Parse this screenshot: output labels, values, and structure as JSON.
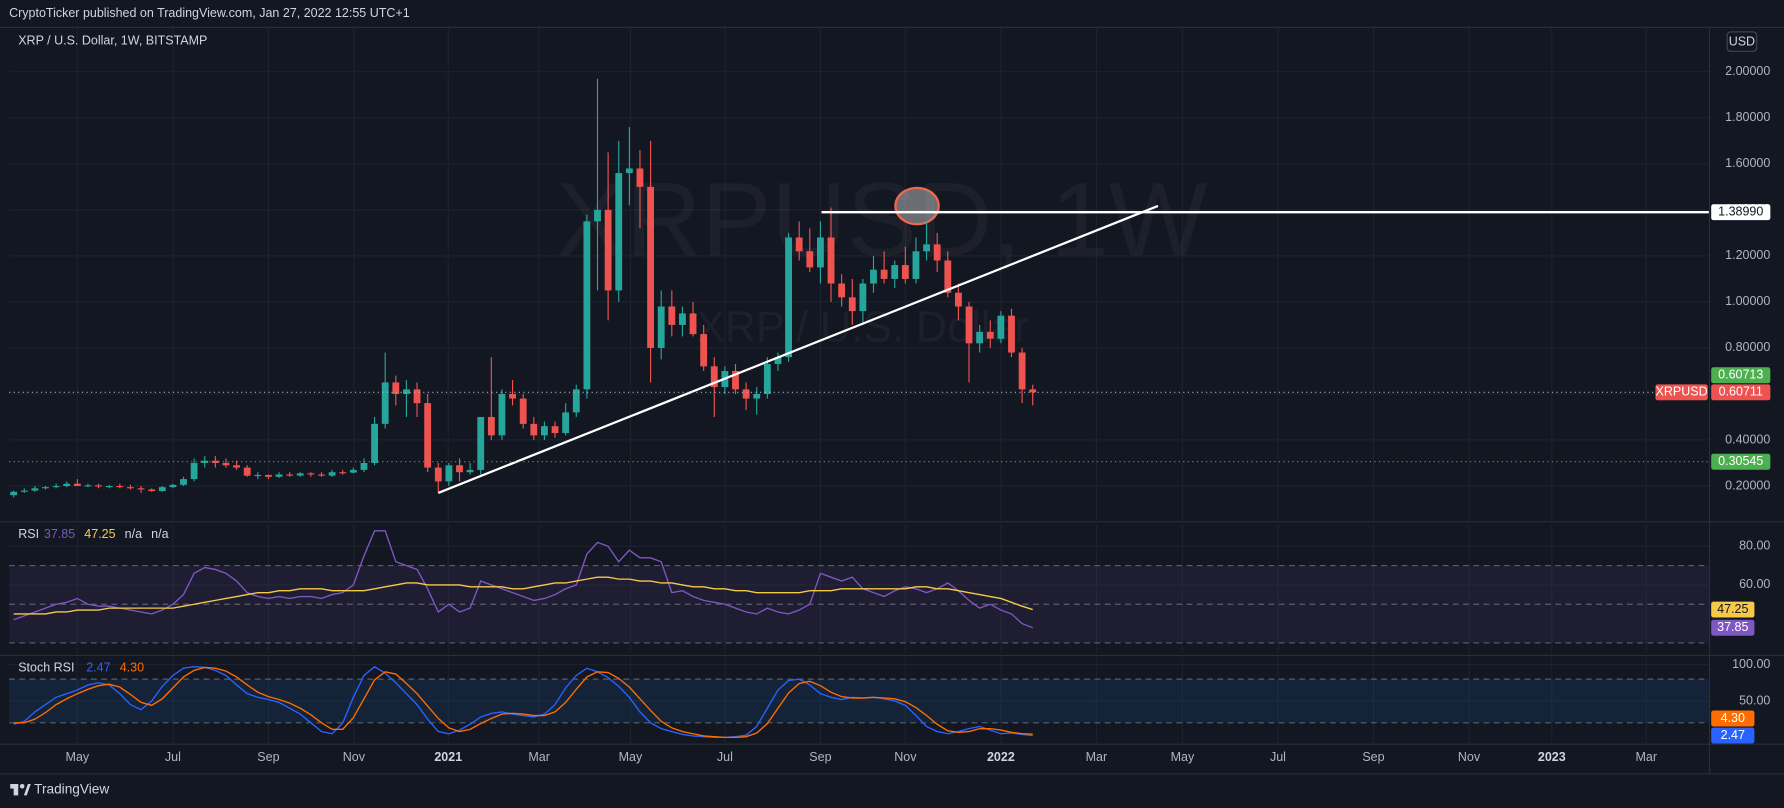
{
  "header": {
    "published": "CryptoTicker published on TradingView.com, Jan 27, 2022 12:55 UTC+1",
    "brand": "TradingView"
  },
  "chart_data": [
    {
      "type": "candlestick",
      "title": "XRP / U.S. Dollar, 1W, BITSTAMP",
      "watermark": "XRPUSD, 1W",
      "watermark_subtitle": "XRP / U.S. Dollar",
      "currency": "USD",
      "up_color": "#26a69a",
      "down_color": "#ef5350",
      "grid": true,
      "xlim": [
        -0.43,
        159.7
      ],
      "xticks": [
        {
          "value": 6.0,
          "label": "May"
        },
        {
          "value": 15.0,
          "label": "Jul"
        },
        {
          "value": 24.0,
          "label": "Sep"
        },
        {
          "value": 32.05,
          "label": "Nov"
        },
        {
          "value": 40.94,
          "label": "2021"
        },
        {
          "value": 49.5,
          "label": "Mar"
        },
        {
          "value": 58.1,
          "label": "May"
        },
        {
          "value": 67.0,
          "label": "Jul"
        },
        {
          "value": 76.0,
          "label": "Sep"
        },
        {
          "value": 84.0,
          "label": "Nov"
        },
        {
          "value": 93.0,
          "label": "2022"
        },
        {
          "value": 102.0,
          "label": "Mar"
        },
        {
          "value": 110.1,
          "label": "May"
        },
        {
          "value": 119.1,
          "label": "Jul"
        },
        {
          "value": 128.1,
          "label": "Sep"
        },
        {
          "value": 137.1,
          "label": "Nov"
        },
        {
          "value": 144.9,
          "label": "2023"
        },
        {
          "value": 153.8,
          "label": "Mar"
        }
      ],
      "ylim": [
        0.052,
        2.193
      ],
      "yticks": [
        {
          "value": 0.2,
          "label": "0.20000"
        },
        {
          "value": 0.4,
          "label": "0.40000"
        },
        {
          "value": 0.6,
          "label": "0.60000"
        },
        {
          "value": 0.8,
          "label": "0.80000"
        },
        {
          "value": 1.0,
          "label": "1.00000"
        },
        {
          "value": 1.2,
          "label": "1.20000"
        },
        {
          "value": 1.4,
          "label": "1.40000"
        },
        {
          "value": 1.6,
          "label": "1.60000"
        },
        {
          "value": 1.8,
          "label": "1.80000"
        },
        {
          "value": 2.0,
          "label": "2.00000"
        }
      ],
      "price_labels": [
        {
          "value": 1.3899,
          "label": "1.38990",
          "color": "#ffffff",
          "text_color": "#131722",
          "line_from": 76.1
        },
        {
          "value": 0.60711,
          "label": "0.60711",
          "color": "#ef5350",
          "text_color": "#ffffff",
          "tag": "XRPUSD",
          "dotted_line": "#b2b5be"
        },
        {
          "value": 0.60713,
          "label": "0.60713",
          "color": "#4caf50",
          "text_color": "#ffffff"
        },
        {
          "value": 0.30545,
          "label": "0.30545",
          "color": "#4caf50",
          "text_color": "#ffffff",
          "dotted_line": "#4caf50"
        }
      ],
      "trendline": [
        [
          40.0,
          0.17
        ],
        [
          107.8,
          1.417
        ]
      ],
      "ohlc": [
        [
          0.16,
          0.18,
          0.15,
          0.175
        ],
        [
          0.175,
          0.19,
          0.17,
          0.18
        ],
        [
          0.18,
          0.2,
          0.175,
          0.19
        ],
        [
          0.19,
          0.2,
          0.185,
          0.195
        ],
        [
          0.195,
          0.21,
          0.19,
          0.2
        ],
        [
          0.2,
          0.22,
          0.195,
          0.21
        ],
        [
          0.21,
          0.23,
          0.2,
          0.2
        ],
        [
          0.2,
          0.21,
          0.195,
          0.203
        ],
        [
          0.203,
          0.21,
          0.19,
          0.198
        ],
        [
          0.198,
          0.205,
          0.19,
          0.2
        ],
        [
          0.2,
          0.21,
          0.19,
          0.195
        ],
        [
          0.195,
          0.205,
          0.185,
          0.19
        ],
        [
          0.19,
          0.2,
          0.17,
          0.185
        ],
        [
          0.185,
          0.19,
          0.175,
          0.178
        ],
        [
          0.178,
          0.2,
          0.175,
          0.195
        ],
        [
          0.195,
          0.21,
          0.19,
          0.205
        ],
        [
          0.205,
          0.24,
          0.2,
          0.23
        ],
        [
          0.23,
          0.32,
          0.22,
          0.3
        ],
        [
          0.3,
          0.33,
          0.28,
          0.31
        ],
        [
          0.31,
          0.33,
          0.28,
          0.3
        ],
        [
          0.3,
          0.32,
          0.28,
          0.29
        ],
        [
          0.29,
          0.31,
          0.27,
          0.28
        ],
        [
          0.28,
          0.29,
          0.24,
          0.245
        ],
        [
          0.245,
          0.26,
          0.23,
          0.248
        ],
        [
          0.248,
          0.25,
          0.23,
          0.24
        ],
        [
          0.24,
          0.26,
          0.235,
          0.25
        ],
        [
          0.25,
          0.26,
          0.24,
          0.245
        ],
        [
          0.245,
          0.26,
          0.24,
          0.255
        ],
        [
          0.255,
          0.26,
          0.24,
          0.25
        ],
        [
          0.25,
          0.26,
          0.24,
          0.245
        ],
        [
          0.245,
          0.27,
          0.24,
          0.26
        ],
        [
          0.26,
          0.27,
          0.25,
          0.258
        ],
        [
          0.258,
          0.28,
          0.255,
          0.27
        ],
        [
          0.27,
          0.32,
          0.26,
          0.3
        ],
        [
          0.3,
          0.5,
          0.29,
          0.47
        ],
        [
          0.47,
          0.78,
          0.45,
          0.65
        ],
        [
          0.65,
          0.68,
          0.55,
          0.6
        ],
        [
          0.6,
          0.66,
          0.5,
          0.62
        ],
        [
          0.62,
          0.65,
          0.5,
          0.56
        ],
        [
          0.56,
          0.6,
          0.26,
          0.28
        ],
        [
          0.28,
          0.3,
          0.17,
          0.22
        ],
        [
          0.22,
          0.3,
          0.2,
          0.29
        ],
        [
          0.29,
          0.32,
          0.22,
          0.26
        ],
        [
          0.26,
          0.3,
          0.25,
          0.27
        ],
        [
          0.27,
          0.5,
          0.25,
          0.5
        ],
        [
          0.5,
          0.76,
          0.4,
          0.42
        ],
        [
          0.42,
          0.62,
          0.4,
          0.6
        ],
        [
          0.6,
          0.66,
          0.55,
          0.58
        ],
        [
          0.58,
          0.6,
          0.45,
          0.47
        ],
        [
          0.47,
          0.5,
          0.4,
          0.42
        ],
        [
          0.42,
          0.48,
          0.4,
          0.46
        ],
        [
          0.46,
          0.48,
          0.41,
          0.43
        ],
        [
          0.43,
          0.56,
          0.42,
          0.52
        ],
        [
          0.52,
          0.64,
          0.5,
          0.62
        ],
        [
          0.62,
          1.38,
          0.58,
          1.35
        ],
        [
          1.35,
          1.97,
          1.05,
          1.4
        ],
        [
          1.4,
          1.65,
          0.92,
          1.05
        ],
        [
          1.05,
          1.7,
          1.0,
          1.56
        ],
        [
          1.56,
          1.76,
          1.42,
          1.58
        ],
        [
          1.58,
          1.66,
          1.32,
          1.5
        ],
        [
          1.5,
          1.7,
          0.65,
          0.8
        ],
        [
          0.8,
          1.05,
          0.75,
          0.98
        ],
        [
          0.98,
          1.05,
          0.85,
          0.9
        ],
        [
          0.9,
          0.98,
          0.85,
          0.95
        ],
        [
          0.95,
          1.0,
          0.85,
          0.86
        ],
        [
          0.86,
          0.9,
          0.7,
          0.72
        ],
        [
          0.72,
          0.76,
          0.5,
          0.63
        ],
        [
          0.63,
          0.72,
          0.6,
          0.7
        ],
        [
          0.7,
          0.73,
          0.6,
          0.62
        ],
        [
          0.62,
          0.65,
          0.53,
          0.58
        ],
        [
          0.58,
          0.63,
          0.51,
          0.6
        ],
        [
          0.6,
          0.76,
          0.58,
          0.73
        ],
        [
          0.73,
          0.78,
          0.7,
          0.76
        ],
        [
          0.76,
          1.3,
          0.74,
          1.28
        ],
        [
          1.28,
          1.35,
          1.18,
          1.22
        ],
        [
          1.22,
          1.32,
          1.13,
          1.15
        ],
        [
          1.15,
          1.35,
          1.08,
          1.28
        ],
        [
          1.28,
          1.41,
          1.0,
          1.08
        ],
        [
          1.08,
          1.12,
          0.98,
          1.02
        ],
        [
          1.02,
          1.1,
          0.9,
          0.96
        ],
        [
          0.96,
          1.1,
          0.9,
          1.08
        ],
        [
          1.08,
          1.2,
          1.04,
          1.14
        ],
        [
          1.14,
          1.22,
          1.08,
          1.1
        ],
        [
          1.1,
          1.18,
          1.06,
          1.16
        ],
        [
          1.16,
          1.24,
          1.08,
          1.1
        ],
        [
          1.1,
          1.28,
          1.08,
          1.22
        ],
        [
          1.22,
          1.35,
          1.18,
          1.25
        ],
        [
          1.25,
          1.3,
          1.13,
          1.18
        ],
        [
          1.18,
          1.22,
          1.02,
          1.04
        ],
        [
          1.04,
          1.08,
          0.92,
          0.98
        ],
        [
          0.98,
          1.0,
          0.65,
          0.82
        ],
        [
          0.82,
          0.9,
          0.78,
          0.87
        ],
        [
          0.87,
          0.92,
          0.8,
          0.84
        ],
        [
          0.84,
          0.96,
          0.82,
          0.94
        ],
        [
          0.94,
          0.97,
          0.76,
          0.78
        ],
        [
          0.78,
          0.8,
          0.56,
          0.62
        ],
        [
          0.62,
          0.64,
          0.55,
          0.60711
        ]
      ]
    },
    {
      "type": "line",
      "title": "RSI",
      "extra_legend": [
        "n/a",
        "n/a"
      ],
      "grid": true,
      "ylim": [
        24.7,
        91.2
      ],
      "yticks": [
        {
          "value": 80,
          "label": "80.00"
        },
        {
          "value": 60,
          "label": "60.00"
        }
      ],
      "levels": [
        70,
        50,
        30
      ],
      "band_color": "rgba(126,87,194,0.10)",
      "series": [
        {
          "color": "#7e57c2",
          "values": [
            42,
            44,
            46,
            48,
            50,
            51,
            53,
            50,
            49,
            49,
            48,
            47,
            46,
            45,
            47,
            50,
            55,
            66,
            69,
            68,
            66,
            62,
            56,
            54,
            53,
            54,
            53,
            54,
            54,
            53,
            55,
            56,
            60,
            75,
            88,
            88,
            72,
            70,
            68,
            58,
            46,
            50,
            46,
            48,
            62,
            60,
            58,
            56,
            54,
            52,
            53,
            55,
            58,
            60,
            76,
            82,
            80,
            72,
            78,
            74,
            74,
            72,
            56,
            57,
            54,
            52,
            51,
            50,
            48,
            46,
            45,
            48,
            46,
            45,
            47,
            50,
            66,
            64,
            62,
            64,
            58,
            56,
            54,
            57,
            59,
            58,
            56,
            58,
            61,
            57,
            52,
            48,
            50,
            47,
            45,
            40,
            37.85
          ]
        },
        {
          "color": "#f7c948",
          "values": [
            45,
            45,
            45,
            45,
            46,
            46,
            47,
            47,
            47,
            48,
            48,
            48,
            48,
            48,
            48,
            48,
            49,
            50,
            51,
            52,
            53,
            54,
            55,
            56,
            56,
            57,
            57,
            58,
            58,
            58,
            57,
            57,
            57,
            57,
            58,
            59,
            60,
            61,
            61,
            60,
            60,
            60,
            60,
            59,
            59,
            59,
            59,
            58,
            58,
            59,
            60,
            61,
            61,
            62,
            63,
            64,
            64,
            63,
            63,
            62,
            62,
            61,
            61,
            60,
            59,
            59,
            58,
            58,
            57,
            57,
            56,
            56,
            56,
            56,
            56,
            57,
            57,
            57,
            58,
            58,
            58,
            58,
            58,
            58,
            58,
            59,
            59,
            58,
            58,
            57,
            56,
            55,
            54,
            53,
            51,
            49,
            47.25
          ]
        }
      ]
    },
    {
      "type": "line",
      "title": "Stoch RSI",
      "grid": true,
      "ylim": [
        -7.8,
        109.4
      ],
      "yticks": [
        {
          "value": 100,
          "label": "100.00"
        },
        {
          "value": 50,
          "label": "50.00"
        }
      ],
      "levels": [
        80,
        20
      ],
      "band_color": "rgba(33,150,243,0.10)",
      "series": [
        {
          "color": "#2962ff",
          "values": [
            18,
            22,
            35,
            45,
            55,
            60,
            65,
            72,
            75,
            72,
            60,
            45,
            38,
            50,
            70,
            85,
            95,
            97,
            96,
            92,
            85,
            72,
            60,
            55,
            52,
            48,
            40,
            32,
            20,
            8,
            5,
            20,
            55,
            85,
            97,
            88,
            75,
            60,
            45,
            25,
            8,
            5,
            10,
            18,
            28,
            33,
            35,
            32,
            30,
            28,
            32,
            45,
            68,
            85,
            95,
            90,
            82,
            70,
            55,
            35,
            20,
            12,
            8,
            4,
            2,
            1,
            0,
            0,
            1,
            3,
            15,
            40,
            65,
            78,
            80,
            72,
            60,
            55,
            52,
            55,
            54,
            55,
            53,
            50,
            44,
            30,
            15,
            8,
            5,
            8,
            12,
            15,
            10,
            5,
            6,
            4,
            2.47
          ]
        },
        {
          "color": "#ff6d00",
          "last_label": "4.30",
          "values": [
            20,
            20,
            25,
            34,
            45,
            53,
            60,
            66,
            71,
            73,
            69,
            59,
            48,
            44,
            53,
            68,
            83,
            92,
            96,
            95,
            91,
            83,
            72,
            62,
            56,
            52,
            47,
            40,
            31,
            20,
            11,
            11,
            27,
            53,
            79,
            90,
            87,
            74,
            60,
            43,
            26,
            13,
            8,
            11,
            19,
            26,
            32,
            33,
            32,
            30,
            30,
            35,
            48,
            66,
            83,
            90,
            89,
            81,
            69,
            53,
            37,
            22,
            13,
            8,
            5,
            2,
            1,
            0,
            0,
            1,
            6,
            19,
            40,
            61,
            74,
            77,
            71,
            62,
            56,
            54,
            54,
            55,
            54,
            53,
            49,
            41,
            30,
            18,
            9,
            7,
            8,
            12,
            12,
            10,
            7,
            5,
            4.3
          ]
        }
      ]
    }
  ]
}
